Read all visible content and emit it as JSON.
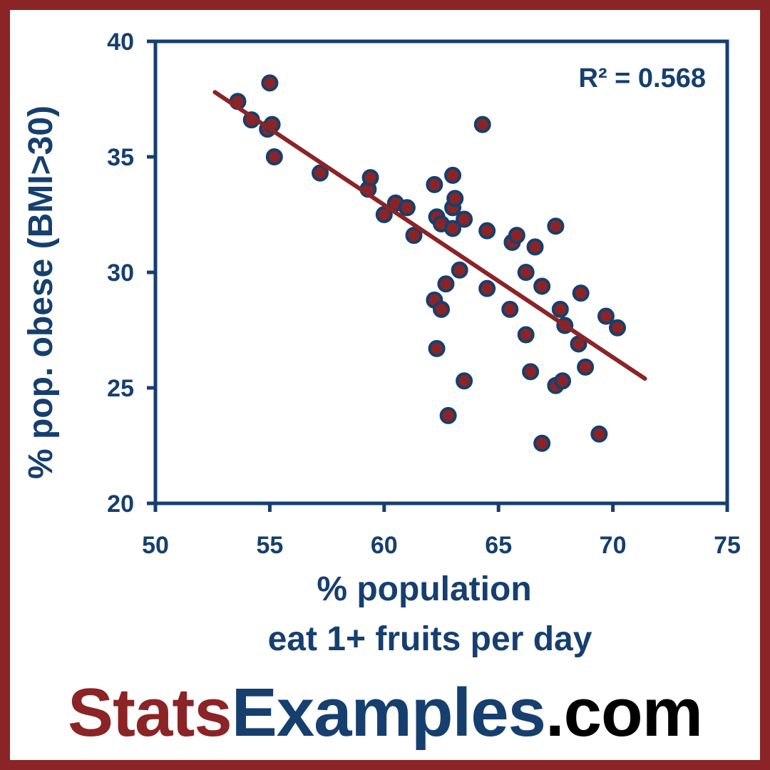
{
  "colors": {
    "frame": "#8b2426",
    "axis": "#163f6e",
    "point_fill": "#8b2426",
    "point_stroke": "#163f6e",
    "trendline": "#8b2426"
  },
  "chart_data": {
    "type": "scatter",
    "xlabel_line1": "% population",
    "xlabel_line2": "eat 1+ fruits per day",
    "ylabel": "% pop. obese (BMI>30)",
    "xlim": [
      50,
      75
    ],
    "ylim": [
      20,
      40
    ],
    "xticks": [
      "50",
      "55",
      "60",
      "65",
      "70",
      "75"
    ],
    "yticks": [
      "20",
      "25",
      "30",
      "35",
      "40"
    ],
    "grid": false,
    "annotation": "R² = 0.568",
    "trendline": {
      "x": [
        52.6,
        71.4
      ],
      "y": [
        37.8,
        25.4
      ]
    },
    "points": [
      [
        53.6,
        37.4
      ],
      [
        54.2,
        36.6
      ],
      [
        55.0,
        38.2
      ],
      [
        54.9,
        36.2
      ],
      [
        55.1,
        36.4
      ],
      [
        55.2,
        35.0
      ],
      [
        57.2,
        34.3
      ],
      [
        59.3,
        33.6
      ],
      [
        59.4,
        34.1
      ],
      [
        60.0,
        32.5
      ],
      [
        60.5,
        33.0
      ],
      [
        61.0,
        32.8
      ],
      [
        61.3,
        31.6
      ],
      [
        62.2,
        33.8
      ],
      [
        62.3,
        32.4
      ],
      [
        62.5,
        32.1
      ],
      [
        63.0,
        34.2
      ],
      [
        63.0,
        32.8
      ],
      [
        63.1,
        33.2
      ],
      [
        63.0,
        31.9
      ],
      [
        63.5,
        32.3
      ],
      [
        62.2,
        28.8
      ],
      [
        62.5,
        28.4
      ],
      [
        62.7,
        29.5
      ],
      [
        63.3,
        30.1
      ],
      [
        62.3,
        26.7
      ],
      [
        63.5,
        25.3
      ],
      [
        62.8,
        23.8
      ],
      [
        64.3,
        36.4
      ],
      [
        64.5,
        31.8
      ],
      [
        64.5,
        29.3
      ],
      [
        65.6,
        31.3
      ],
      [
        65.8,
        31.6
      ],
      [
        66.6,
        31.1
      ],
      [
        67.5,
        32.0
      ],
      [
        66.2,
        30.0
      ],
      [
        66.9,
        29.4
      ],
      [
        65.5,
        28.4
      ],
      [
        66.2,
        27.3
      ],
      [
        67.7,
        28.4
      ],
      [
        67.9,
        27.7
      ],
      [
        68.5,
        26.9
      ],
      [
        68.6,
        29.1
      ],
      [
        69.7,
        28.1
      ],
      [
        70.2,
        27.6
      ],
      [
        66.4,
        25.7
      ],
      [
        67.5,
        25.1
      ],
      [
        67.8,
        25.3
      ],
      [
        68.8,
        25.9
      ],
      [
        66.9,
        22.6
      ],
      [
        69.4,
        23.0
      ]
    ]
  },
  "brand": {
    "part1": "Stats",
    "part2": "Examples",
    "part3": ".com"
  }
}
